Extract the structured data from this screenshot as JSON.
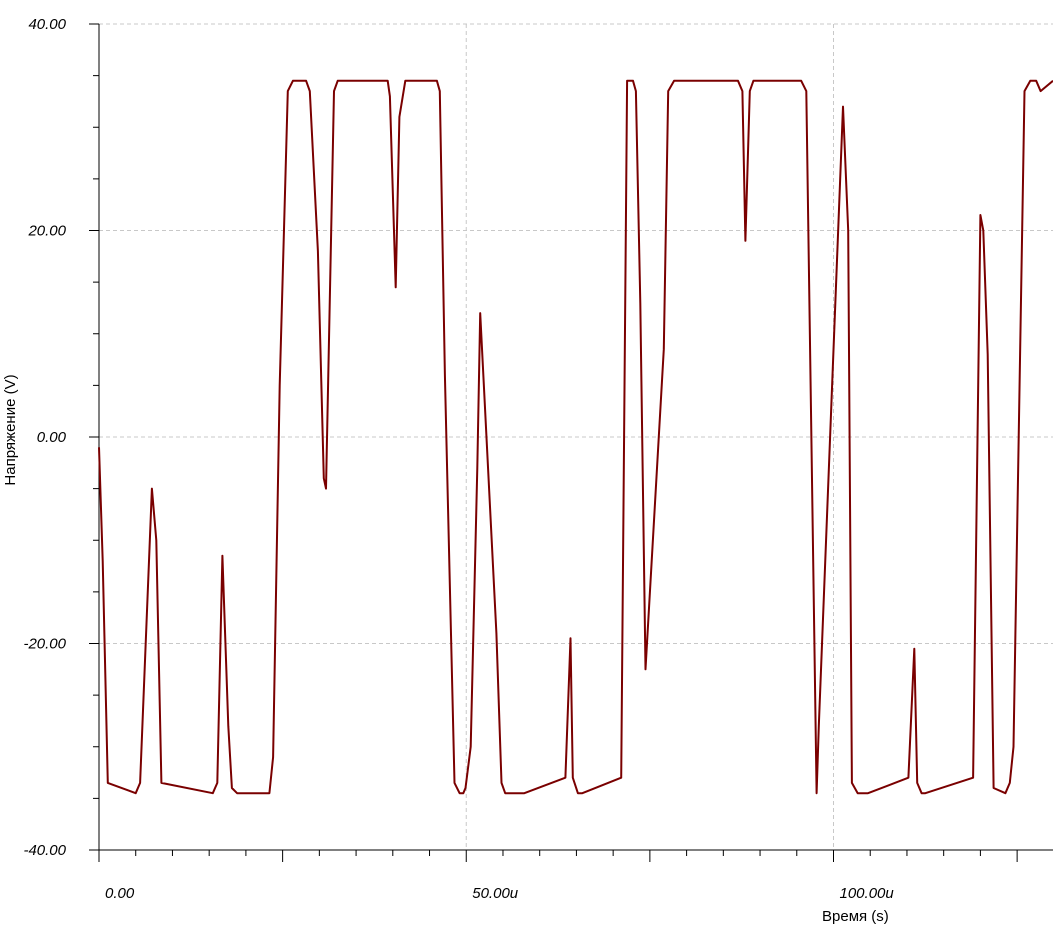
{
  "chart_data": {
    "type": "line",
    "title": "",
    "xlabel": "Время (s)",
    "ylabel": "Напряжение (V)",
    "xlim": [
      0,
      0.00013
    ],
    "ylim": [
      -40,
      40
    ],
    "grid": true,
    "legend": "none",
    "x_tick_labels": [
      {
        "value": 0,
        "label": "0.00"
      },
      {
        "value": 5e-05,
        "label": "50.00u"
      },
      {
        "value": 0.0001,
        "label": "100.00u"
      }
    ],
    "y_tick_labels": [
      {
        "value": 40,
        "label": "40.00"
      },
      {
        "value": 20,
        "label": "20.00"
      },
      {
        "value": 0,
        "label": "0.00"
      },
      {
        "value": -20,
        "label": "-20.00"
      },
      {
        "value": -40,
        "label": "-40.00"
      }
    ],
    "series": [
      {
        "color": "#7a0000",
        "x_unit_scale": 1e-06,
        "x": [
          0,
          0.5,
          1.2,
          5,
          5.6,
          7.2,
          7.8,
          8.5,
          15.5,
          16.1,
          16.8,
          17.6,
          18.1,
          18.8,
          23.2,
          23.7,
          24.6,
          25.7,
          26.4,
          28.2,
          28.7,
          29.8,
          30.6,
          30.9,
          32.0,
          32.5,
          33.3,
          39.3,
          39.6,
          40.4,
          40.9,
          41.7,
          46.0,
          46.4,
          47.1,
          48.4,
          49.1,
          49.6,
          49.9,
          50.6,
          51.5,
          51.9,
          54.1,
          54.8,
          55.3,
          56.1,
          57.3,
          57.9,
          63.5,
          64.2,
          64.5,
          65.2,
          65.8,
          71.1,
          71.9,
          72.7,
          73.1,
          73.7,
          74.4,
          76.9,
          77.5,
          78.3,
          78.8,
          80.0,
          87.0,
          87.6,
          88.0,
          88.6,
          89.1,
          95.6,
          96.3,
          97.7,
          98.0,
          101.3,
          102.0,
          102.5,
          103.3,
          104.0,
          104.7,
          110.2,
          111.0,
          111.4,
          112.0,
          112.5,
          119.0,
          120.0,
          120.4,
          121.0,
          121.8,
          123.4,
          124.0,
          124.5,
          126.0,
          126.8,
          127.6,
          128.2,
          130.0
        ],
        "y": [
          -1,
          -12,
          -33.5,
          -34.5,
          -33.5,
          -5,
          -10,
          -33.5,
          -34.5,
          -33.5,
          -11.5,
          -28,
          -34,
          -34.5,
          -34.5,
          -31,
          5,
          33.5,
          34.5,
          34.5,
          33.5,
          18,
          -4,
          -5,
          33.5,
          34.5,
          34.5,
          34.5,
          33,
          14.5,
          31,
          34.5,
          34.5,
          33.5,
          6,
          -33.5,
          -34.5,
          -34.5,
          -34,
          -30,
          -3,
          12,
          -19,
          -33.5,
          -34.5,
          -34.5,
          -34.5,
          -34.5,
          -33,
          -19.5,
          -33,
          -34.5,
          -34.5,
          -33,
          34.5,
          34.5,
          33.5,
          13,
          -22.5,
          8.5,
          33.5,
          34.5,
          34.5,
          34.5,
          34.5,
          33.5,
          19,
          33.5,
          34.5,
          34.5,
          33.5,
          -34.5,
          -28,
          32,
          20,
          -33.5,
          -34.5,
          -34.5,
          -34.5,
          -33,
          -20.5,
          -33.5,
          -34.5,
          -34.5,
          -33,
          21.5,
          20,
          8,
          -34,
          -34.5,
          -33.5,
          -30,
          33.5,
          34.5,
          34.5,
          33.5,
          34.5
        ]
      }
    ]
  }
}
